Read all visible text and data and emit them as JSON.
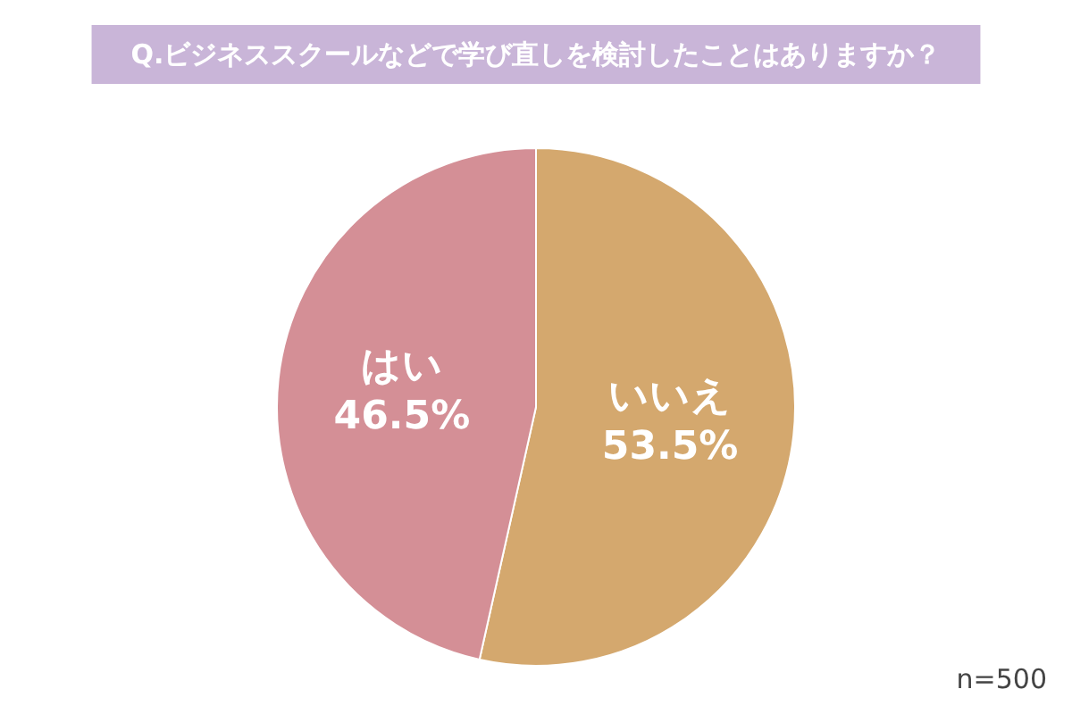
{
  "chart_data": {
    "type": "pie",
    "title": "Q.ビジネススクールなどで学び直しを検討したことはありますか？",
    "categories": [
      "いいえ",
      "はい"
    ],
    "values": [
      53.5,
      46.5
    ],
    "colors": [
      "#d4a86e",
      "#d48f96"
    ],
    "value_labels": [
      "53.5%",
      "46.5%"
    ],
    "annotations": [
      "n=500"
    ],
    "legend": false
  }
}
